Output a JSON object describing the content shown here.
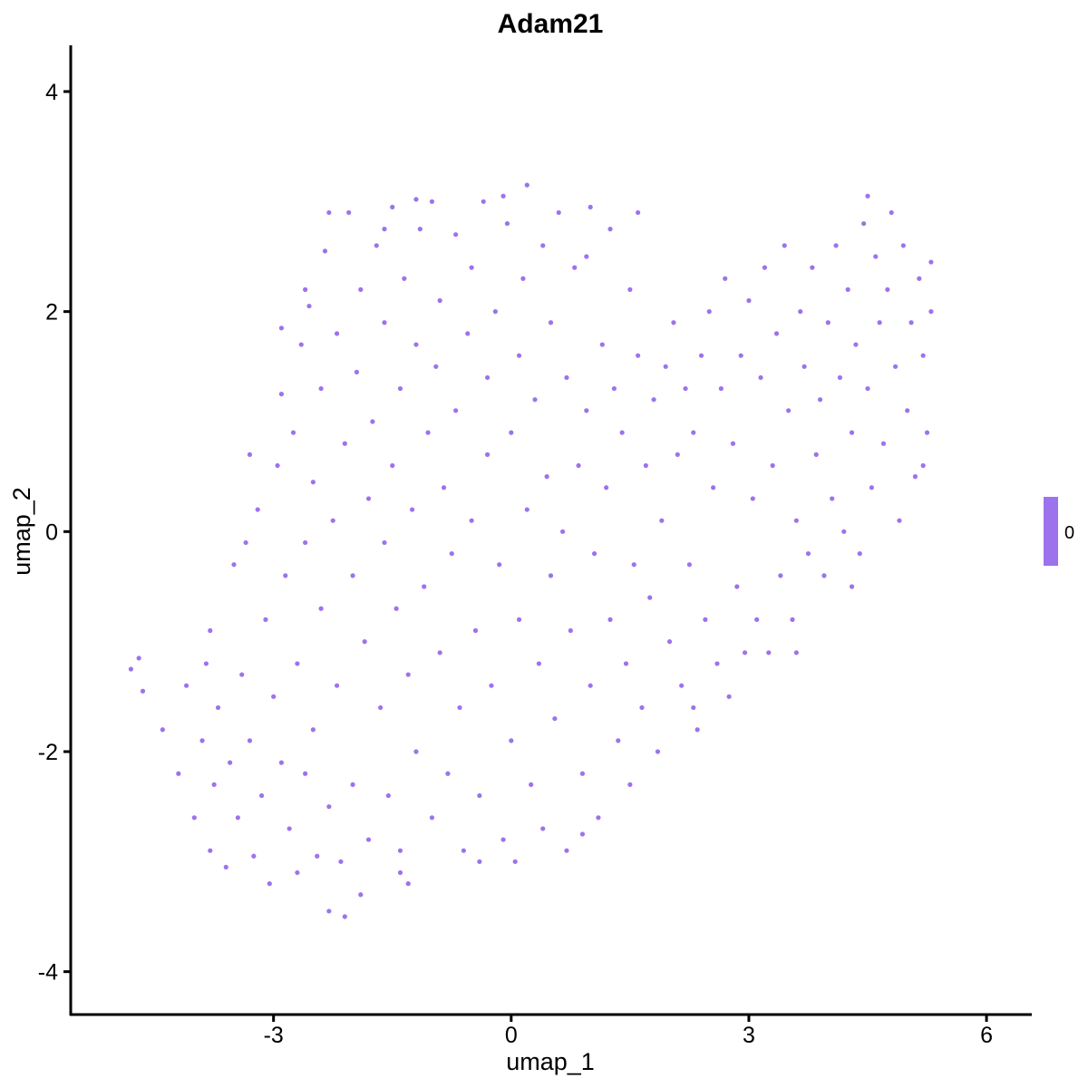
{
  "chart_data": {
    "type": "scatter",
    "title": "Adam21",
    "xlabel": "umap_1",
    "ylabel": "umap_2",
    "xlim": [
      -5.56,
      6.56
    ],
    "ylim": [
      -4.39,
      4.42
    ],
    "xticks": [
      -3,
      0,
      3,
      6
    ],
    "yticks": [
      -4,
      -2,
      0,
      2,
      4
    ],
    "xtick_labels": [
      "-3",
      "0",
      "3",
      "6"
    ],
    "ytick_labels": [
      "-4",
      "-2",
      "0",
      "2",
      "4"
    ],
    "grid": false,
    "legend": {
      "position": "right",
      "labels": [
        "0"
      ],
      "color": "#9c73ec"
    },
    "point_color": "#9c73ec",
    "points": [
      [
        -4.8,
        -1.25
      ],
      [
        -4.7,
        -1.15
      ],
      [
        -4.65,
        -1.45
      ],
      [
        -4.4,
        -1.8
      ],
      [
        -4.2,
        -2.2
      ],
      [
        -4.1,
        -1.4
      ],
      [
        -4.0,
        -2.6
      ],
      [
        -3.9,
        -1.9
      ],
      [
        -3.85,
        -1.2
      ],
      [
        -3.8,
        -2.9
      ],
      [
        -3.75,
        -2.3
      ],
      [
        -3.7,
        -1.6
      ],
      [
        -3.6,
        -3.05
      ],
      [
        -3.55,
        -2.1
      ],
      [
        -3.5,
        -0.3
      ],
      [
        -3.45,
        -2.6
      ],
      [
        -3.4,
        -1.3
      ],
      [
        -3.35,
        -0.1
      ],
      [
        -3.3,
        -1.9
      ],
      [
        -3.25,
        -2.95
      ],
      [
        -3.2,
        0.2
      ],
      [
        -3.15,
        -2.4
      ],
      [
        -3.1,
        -0.8
      ],
      [
        -3.05,
        -3.2
      ],
      [
        -3.0,
        -1.5
      ],
      [
        -2.95,
        0.6
      ],
      [
        -2.9,
        -2.1
      ],
      [
        -2.9,
        1.25
      ],
      [
        -2.85,
        -0.4
      ],
      [
        -2.8,
        -2.7
      ],
      [
        -2.75,
        0.9
      ],
      [
        -2.7,
        -1.2
      ],
      [
        -2.7,
        -3.1
      ],
      [
        -2.65,
        1.7
      ],
      [
        -2.6,
        -0.1
      ],
      [
        -2.6,
        -2.2
      ],
      [
        -2.55,
        2.05
      ],
      [
        -2.5,
        0.45
      ],
      [
        -2.5,
        -1.8
      ],
      [
        -2.45,
        -2.95
      ],
      [
        -2.4,
        1.3
      ],
      [
        -2.4,
        -0.7
      ],
      [
        -2.35,
        2.55
      ],
      [
        -2.3,
        -2.5
      ],
      [
        -2.3,
        -3.45
      ],
      [
        -2.25,
        0.1
      ],
      [
        -2.2,
        1.8
      ],
      [
        -2.2,
        -1.4
      ],
      [
        -2.15,
        -3.0
      ],
      [
        -2.1,
        0.8
      ],
      [
        -2.05,
        2.9
      ],
      [
        -2.0,
        -0.4
      ],
      [
        -2.0,
        -2.3
      ],
      [
        -1.95,
        1.45
      ],
      [
        -1.9,
        -3.3
      ],
      [
        -1.9,
        2.2
      ],
      [
        -1.85,
        -1.0
      ],
      [
        -1.8,
        0.3
      ],
      [
        -1.8,
        -2.8
      ],
      [
        -1.75,
        1.0
      ],
      [
        -1.7,
        2.6
      ],
      [
        -1.65,
        -1.6
      ],
      [
        -1.6,
        -0.1
      ],
      [
        -1.6,
        1.9
      ],
      [
        -1.55,
        -2.4
      ],
      [
        -1.5,
        2.95
      ],
      [
        -1.5,
        0.6
      ],
      [
        -1.45,
        -0.7
      ],
      [
        -1.4,
        -2.9
      ],
      [
        -1.4,
        1.3
      ],
      [
        -1.35,
        2.3
      ],
      [
        -1.3,
        -1.3
      ],
      [
        -1.3,
        -3.2
      ],
      [
        -1.25,
        0.2
      ],
      [
        -1.2,
        1.7
      ],
      [
        -1.2,
        -2.0
      ],
      [
        -1.15,
        2.75
      ],
      [
        -1.1,
        -0.5
      ],
      [
        -1.05,
        0.9
      ],
      [
        -1.0,
        -2.6
      ],
      [
        -1.0,
        3.0
      ],
      [
        -0.95,
        1.5
      ],
      [
        -0.9,
        -1.1
      ],
      [
        -0.9,
        2.1
      ],
      [
        -0.85,
        0.4
      ],
      [
        -0.8,
        -2.2
      ],
      [
        -0.75,
        -0.2
      ],
      [
        -0.7,
        2.7
      ],
      [
        -0.7,
        1.1
      ],
      [
        -0.65,
        -1.6
      ],
      [
        -0.6,
        -2.9
      ],
      [
        -0.55,
        1.8
      ],
      [
        -0.5,
        0.1
      ],
      [
        -0.5,
        2.4
      ],
      [
        -0.45,
        -0.9
      ],
      [
        -0.4,
        -2.4
      ],
      [
        -0.35,
        3.0
      ],
      [
        -0.3,
        0.7
      ],
      [
        -0.3,
        1.4
      ],
      [
        -0.25,
        -1.4
      ],
      [
        -0.2,
        2.0
      ],
      [
        -0.15,
        -0.3
      ],
      [
        -0.1,
        -2.8
      ],
      [
        -0.05,
        2.8
      ],
      [
        0.0,
        0.9
      ],
      [
        0.0,
        -1.9
      ],
      [
        0.05,
        -3.0
      ],
      [
        0.1,
        1.6
      ],
      [
        0.1,
        -0.8
      ],
      [
        0.15,
        2.3
      ],
      [
        0.2,
        3.15
      ],
      [
        0.2,
        0.2
      ],
      [
        0.25,
        -2.3
      ],
      [
        0.3,
        1.2
      ],
      [
        0.35,
        -1.2
      ],
      [
        0.4,
        2.6
      ],
      [
        0.4,
        -2.7
      ],
      [
        0.45,
        0.5
      ],
      [
        0.5,
        -0.4
      ],
      [
        0.5,
        1.9
      ],
      [
        0.55,
        -1.7
      ],
      [
        0.6,
        2.9
      ],
      [
        0.65,
        0.0
      ],
      [
        0.7,
        -2.9
      ],
      [
        0.7,
        1.4
      ],
      [
        0.75,
        -0.9
      ],
      [
        0.8,
        2.4
      ],
      [
        0.85,
        0.6
      ],
      [
        0.9,
        -2.2
      ],
      [
        0.95,
        1.1
      ],
      [
        1.0,
        -1.4
      ],
      [
        1.0,
        2.95
      ],
      [
        1.05,
        -0.2
      ],
      [
        1.1,
        -2.6
      ],
      [
        1.15,
        1.7
      ],
      [
        1.2,
        0.4
      ],
      [
        1.25,
        -0.8
      ],
      [
        1.3,
        1.3
      ],
      [
        1.35,
        -1.9
      ],
      [
        1.4,
        0.9
      ],
      [
        1.45,
        -1.2
      ],
      [
        1.5,
        2.2
      ],
      [
        1.55,
        -0.3
      ],
      [
        1.6,
        2.9
      ],
      [
        1.6,
        1.6
      ],
      [
        1.65,
        -1.6
      ],
      [
        1.7,
        0.6
      ],
      [
        1.75,
        -0.6
      ],
      [
        1.8,
        1.2
      ],
      [
        1.85,
        -2.0
      ],
      [
        1.9,
        0.1
      ],
      [
        1.95,
        1.5
      ],
      [
        2.0,
        -1.0
      ],
      [
        2.05,
        1.9
      ],
      [
        2.1,
        0.7
      ],
      [
        2.15,
        -1.4
      ],
      [
        2.2,
        1.3
      ],
      [
        2.25,
        -0.3
      ],
      [
        2.3,
        0.9
      ],
      [
        2.35,
        -1.8
      ],
      [
        2.4,
        1.6
      ],
      [
        2.45,
        -0.8
      ],
      [
        2.5,
        2.0
      ],
      [
        2.55,
        0.4
      ],
      [
        2.6,
        -1.2
      ],
      [
        2.65,
        1.3
      ],
      [
        2.7,
        2.3
      ],
      [
        2.75,
        -1.5
      ],
      [
        2.8,
        0.8
      ],
      [
        2.85,
        -0.5
      ],
      [
        2.9,
        1.6
      ],
      [
        2.95,
        -1.1
      ],
      [
        3.0,
        2.1
      ],
      [
        3.05,
        0.3
      ],
      [
        3.1,
        -0.8
      ],
      [
        3.15,
        1.4
      ],
      [
        3.2,
        2.4
      ],
      [
        3.25,
        -1.1
      ],
      [
        3.3,
        0.6
      ],
      [
        3.35,
        1.8
      ],
      [
        3.4,
        -0.4
      ],
      [
        3.45,
        2.6
      ],
      [
        3.5,
        1.1
      ],
      [
        3.55,
        -0.8
      ],
      [
        3.6,
        0.1
      ],
      [
        3.65,
        2.0
      ],
      [
        3.7,
        1.5
      ],
      [
        3.75,
        -0.2
      ],
      [
        3.8,
        2.4
      ],
      [
        3.85,
        0.7
      ],
      [
        3.9,
        1.2
      ],
      [
        3.95,
        -0.4
      ],
      [
        4.0,
        1.9
      ],
      [
        4.05,
        0.3
      ],
      [
        4.1,
        2.6
      ],
      [
        4.15,
        1.4
      ],
      [
        4.2,
        0.0
      ],
      [
        4.25,
        2.2
      ],
      [
        4.3,
        0.9
      ],
      [
        4.35,
        1.7
      ],
      [
        4.4,
        -0.2
      ],
      [
        4.45,
        2.8
      ],
      [
        4.5,
        3.05
      ],
      [
        4.5,
        1.3
      ],
      [
        4.55,
        0.4
      ],
      [
        4.6,
        2.5
      ],
      [
        4.65,
        1.9
      ],
      [
        4.7,
        0.8
      ],
      [
        4.75,
        2.2
      ],
      [
        4.8,
        2.9
      ],
      [
        4.85,
        1.5
      ],
      [
        4.9,
        0.1
      ],
      [
        4.95,
        2.6
      ],
      [
        5.0,
        1.1
      ],
      [
        5.05,
        1.9
      ],
      [
        5.1,
        0.5
      ],
      [
        5.15,
        2.3
      ],
      [
        5.2,
        1.6
      ],
      [
        5.25,
        0.9
      ],
      [
        5.3,
        2.0
      ],
      [
        5.3,
        2.45
      ],
      [
        5.2,
        0.6
      ],
      [
        4.3,
        -0.5
      ],
      [
        3.6,
        -1.1
      ],
      [
        2.3,
        -1.6
      ],
      [
        1.5,
        -2.3
      ],
      [
        0.9,
        -2.75
      ],
      [
        -0.4,
        -3.0
      ],
      [
        -1.4,
        -3.1
      ],
      [
        -2.1,
        -3.5
      ],
      [
        -3.8,
        -0.9
      ],
      [
        -3.3,
        0.7
      ],
      [
        -2.9,
        1.85
      ],
      [
        -2.6,
        2.2
      ],
      [
        -2.3,
        2.9
      ],
      [
        -1.6,
        2.75
      ],
      [
        -1.2,
        3.02
      ],
      [
        -0.1,
        3.05
      ],
      [
        0.95,
        2.5
      ],
      [
        1.25,
        2.75
      ]
    ]
  }
}
